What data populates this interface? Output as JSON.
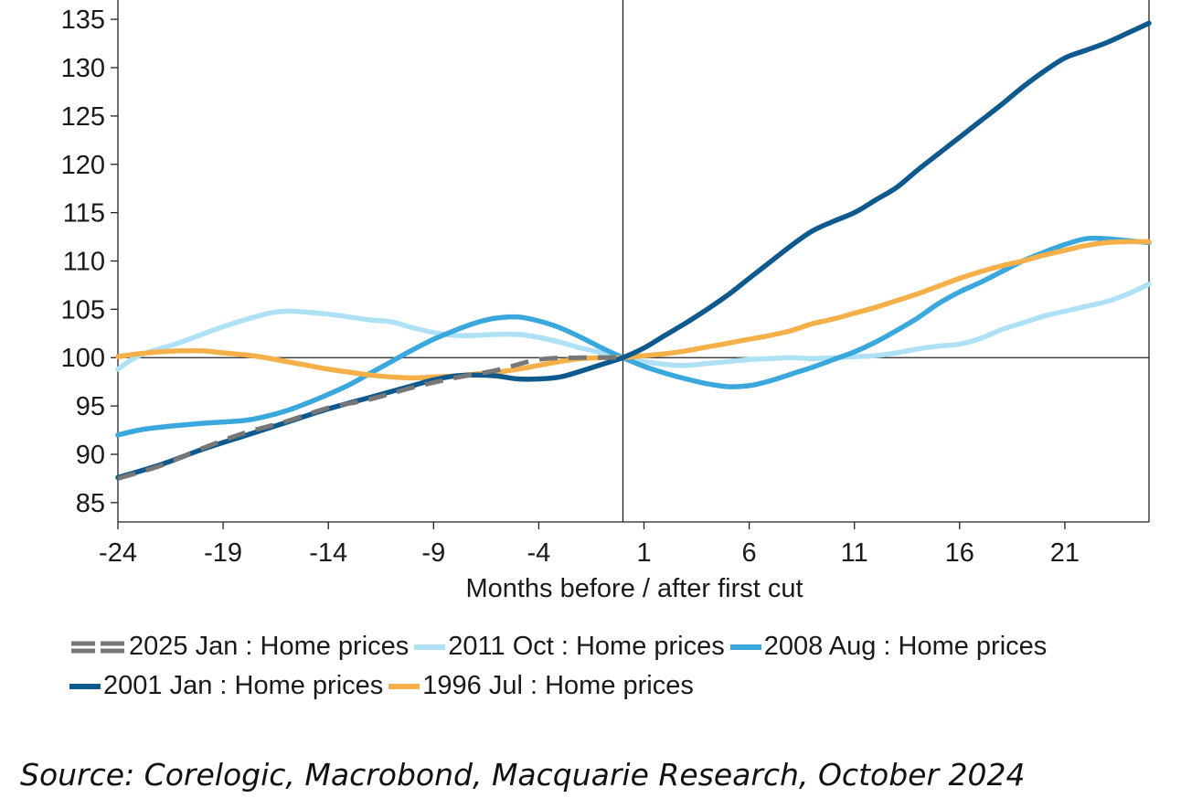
{
  "chart_data": {
    "type": "line",
    "title": "",
    "xlabel": "Months before / after first cut",
    "ylabel": "",
    "xlim": [
      -24,
      25
    ],
    "ylim": [
      83,
      137
    ],
    "x_ticks": [
      -24,
      -19,
      -14,
      -9,
      -4,
      1,
      6,
      11,
      16,
      21
    ],
    "y_ticks": [
      85,
      90,
      95,
      100,
      105,
      110,
      115,
      120,
      125,
      130,
      135
    ],
    "reference_lines": {
      "x": 0,
      "y": 100
    },
    "grid": false,
    "legend_position": "bottom",
    "series": [
      {
        "name": "2025 Jan : Home prices",
        "color": "#777777",
        "style": "dashed",
        "x": [
          -24,
          -22,
          -20,
          -18,
          -16,
          -14,
          -12,
          -10,
          -8,
          -6,
          -4,
          -2,
          0
        ],
        "values": [
          87.5,
          88.8,
          90.6,
          92.2,
          93.4,
          94.8,
          95.7,
          96.9,
          97.9,
          98.7,
          99.8,
          100.0,
          100.0
        ]
      },
      {
        "name": "2011 Oct : Home prices",
        "color": "#aee0f6",
        "style": "solid",
        "x": [
          -24,
          -23,
          -21,
          -19,
          -17,
          -16,
          -15,
          -14,
          -13,
          -12,
          -11,
          -10,
          -9,
          -8,
          -7,
          -6,
          -5,
          -4,
          -3,
          -2,
          -1,
          0,
          1,
          2,
          3,
          4,
          5,
          6,
          7,
          8,
          9,
          10,
          11,
          12,
          13,
          14,
          15,
          16,
          17,
          18,
          19,
          20,
          21,
          22,
          23,
          24,
          25
        ],
        "values": [
          98.8,
          100.2,
          101.6,
          103.2,
          104.5,
          104.8,
          104.7,
          104.5,
          104.2,
          103.9,
          103.7,
          103.1,
          102.6,
          102.3,
          102.3,
          102.4,
          102.4,
          102.1,
          101.6,
          101.0,
          100.5,
          100.0,
          99.6,
          99.3,
          99.2,
          99.4,
          99.6,
          99.8,
          99.9,
          100.0,
          99.9,
          100.0,
          100.1,
          100.2,
          100.5,
          100.9,
          101.2,
          101.4,
          102.0,
          102.9,
          103.6,
          104.3,
          104.8,
          105.3,
          105.8,
          106.6,
          107.6
        ]
      },
      {
        "name": "2008 Aug : Home prices",
        "color": "#3aa8dc",
        "style": "solid",
        "x": [
          -24,
          -23,
          -22,
          -20,
          -18,
          -17,
          -16,
          -15,
          -14,
          -13,
          -12,
          -11,
          -10,
          -9,
          -8,
          -7,
          -6,
          -5,
          -4,
          -3,
          -2,
          -1,
          0,
          1,
          2,
          3,
          4,
          5,
          6,
          7,
          8,
          9,
          10,
          11,
          12,
          13,
          14,
          15,
          16,
          17,
          18,
          19,
          20,
          21,
          22,
          23,
          24,
          25
        ],
        "values": [
          92.0,
          92.5,
          92.8,
          93.2,
          93.5,
          93.9,
          94.5,
          95.3,
          96.2,
          97.2,
          98.4,
          99.6,
          100.8,
          101.9,
          102.8,
          103.6,
          104.1,
          104.2,
          103.8,
          103.1,
          102.1,
          101.0,
          100.0,
          99.1,
          98.4,
          97.8,
          97.3,
          97.0,
          97.1,
          97.6,
          98.3,
          99.0,
          99.8,
          100.6,
          101.6,
          102.8,
          104.1,
          105.6,
          106.8,
          107.8,
          108.9,
          110.0,
          110.9,
          111.7,
          112.3,
          112.3,
          112.1,
          111.9
        ]
      },
      {
        "name": "2001 Jan : Home prices",
        "color": "#0e5a8e",
        "style": "solid",
        "x": [
          -24,
          -22,
          -20,
          -18,
          -16,
          -14,
          -12,
          -10,
          -9,
          -8,
          -7,
          -6,
          -5,
          -4,
          -3,
          -2,
          -1,
          0,
          1,
          2,
          3,
          4,
          5,
          6,
          7,
          8,
          9,
          10,
          11,
          12,
          13,
          14,
          15,
          16,
          17,
          18,
          19,
          20,
          21,
          22,
          23,
          24,
          25
        ],
        "values": [
          87.6,
          88.9,
          90.5,
          91.9,
          93.3,
          94.7,
          95.9,
          97.1,
          97.7,
          98.1,
          98.2,
          98.1,
          97.8,
          97.8,
          98.0,
          98.6,
          99.3,
          100.0,
          101.0,
          102.3,
          103.6,
          105.0,
          106.5,
          108.2,
          109.9,
          111.6,
          113.1,
          114.1,
          115.0,
          116.3,
          117.6,
          119.4,
          121.1,
          122.8,
          124.5,
          126.2,
          128.0,
          129.6,
          131.0,
          131.8,
          132.6,
          133.6,
          134.6
        ]
      },
      {
        "name": "1996 Jul : Home prices",
        "color": "#f5b04a",
        "style": "solid",
        "x": [
          -24,
          -23,
          -22,
          -21,
          -20,
          -19,
          -18,
          -17,
          -16,
          -15,
          -14,
          -13,
          -12,
          -11,
          -10,
          -9,
          -8,
          -7,
          -6,
          -5,
          -4,
          -3,
          -2,
          -1,
          0,
          1,
          2,
          3,
          4,
          5,
          6,
          7,
          8,
          9,
          10,
          11,
          12,
          13,
          14,
          15,
          16,
          17,
          18,
          19,
          20,
          21,
          22,
          23,
          24,
          25
        ],
        "values": [
          100.1,
          100.4,
          100.6,
          100.7,
          100.7,
          100.5,
          100.3,
          100.0,
          99.6,
          99.2,
          98.8,
          98.5,
          98.2,
          98.0,
          97.9,
          98.0,
          98.1,
          98.3,
          98.5,
          98.8,
          99.2,
          99.6,
          99.9,
          100.0,
          100.0,
          100.2,
          100.4,
          100.7,
          101.1,
          101.5,
          101.9,
          102.3,
          102.8,
          103.5,
          104.0,
          104.6,
          105.2,
          105.9,
          106.6,
          107.4,
          108.2,
          108.9,
          109.5,
          110.0,
          110.6,
          111.1,
          111.6,
          111.9,
          112.0,
          112.0
        ]
      }
    ]
  },
  "legend": {
    "items": [
      {
        "label": "2025 Jan : Home prices",
        "color": "#777777",
        "style": "dashed"
      },
      {
        "label": "2011 Oct : Home prices",
        "color": "#aee0f6",
        "style": "solid"
      },
      {
        "label": "2008 Aug : Home prices",
        "color": "#3aa8dc",
        "style": "solid"
      },
      {
        "label": "2001 Jan : Home prices",
        "color": "#0e5a8e",
        "style": "solid"
      },
      {
        "label": "1996 Jul : Home prices",
        "color": "#f5b04a",
        "style": "solid"
      }
    ]
  },
  "source": "Source: Corelogic, Macrobond, Macquarie Research, October 2024"
}
